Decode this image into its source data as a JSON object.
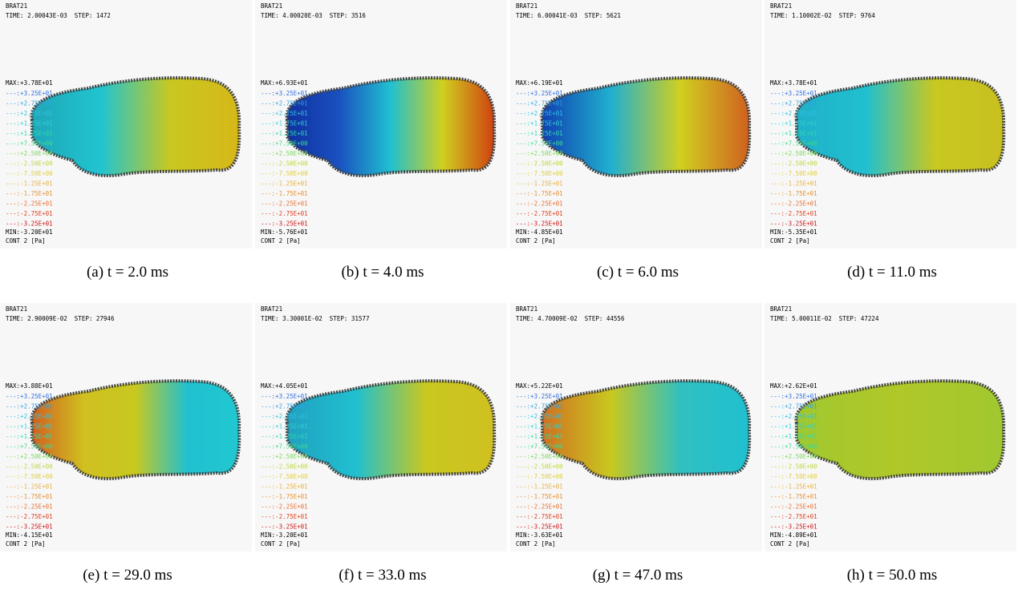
{
  "legend": {
    "levels": [
      "---:+3.25E+01",
      "---:+2.75E+01",
      "---:+2.25E+01",
      "---:+1.75E+01",
      "---:+1.25E+01",
      "---:+7.50E+00",
      "---:+2.50E+00",
      "---:-2.50E+00",
      "---:-7.50E+00",
      "---:-1.25E+01",
      "---:-1.75E+01",
      "---:-2.25E+01",
      "---:-2.75E+01",
      "---:-3.25E+01"
    ],
    "colors": [
      "#3070e0",
      "#30a0e0",
      "#30c0e0",
      "#30d0d0",
      "#30d8b0",
      "#40d890",
      "#80d860",
      "#c0d840",
      "#e0d040",
      "#e8b040",
      "#e89030",
      "#e87030",
      "#e04020",
      "#d01010"
    ]
  },
  "panels": [
    {
      "header": "BRAT21",
      "time": "TIME: 2.00043E-03  STEP: 1472",
      "max": "MAX:+3.78E+01",
      "min": "MIN:-3.20E+01",
      "unit": "CONT 2 [Pa]",
      "caption": "(a) t = 2.0 ms",
      "field_colors": [
        "#1fa7b8",
        "#20c4d0",
        "#c8c820",
        "#d6b818"
      ]
    },
    {
      "header": "BRAT21",
      "time": "TIME: 4.00020E-03  STEP: 3516",
      "max": "MAX:+6.93E+01",
      "min": "MIN:-5.76E+01",
      "unit": "CONT 2 [Pa]",
      "caption": "(b) t = 4.0 ms",
      "field_colors": [
        "#1030a0",
        "#1a50c0",
        "#20c0d0",
        "#d0d020",
        "#d04010"
      ]
    },
    {
      "header": "BRAT21",
      "time": "TIME: 6.00041E-03  STEP: 5621",
      "max": "MAX:+6.19E+01",
      "min": "MIN:-4.85E+01",
      "unit": "CONT 2 [Pa]",
      "caption": "(c) t = 6.0 ms",
      "field_colors": [
        "#1040b0",
        "#20b0d0",
        "#d0d020",
        "#d06020"
      ]
    },
    {
      "header": "BRAT21",
      "time": "TIME: 1.10002E-02  STEP: 9764",
      "max": "MAX:+3.78E+01",
      "min": "MIN:-5.35E+01",
      "unit": "CONT 2 [Pa]",
      "caption": "(d) t = 11.0 ms",
      "field_colors": [
        "#20b0c8",
        "#20c0d0",
        "#c8c820",
        "#c8c020"
      ]
    },
    {
      "header": "BRAT21",
      "time": "TIME: 2.90009E-02  STEP: 27946",
      "max": "MAX:+3.88E+01",
      "min": "MIN:-4.15E+01",
      "unit": "CONT 2 [Pa]",
      "caption": "(e) t = 29.0 ms",
      "field_colors": [
        "#d06020",
        "#d0c020",
        "#c8c820",
        "#20c0d0",
        "#20c8d0"
      ]
    },
    {
      "header": "BRAT21",
      "time": "TIME: 3.30001E-02  STEP: 31577",
      "max": "MAX:+4.05E+01",
      "min": "MIN:-3.20E+01",
      "unit": "CONT 2 [Pa]",
      "caption": "(f) t = 33.0 ms",
      "field_colors": [
        "#20a0c0",
        "#20c0d0",
        "#c8c820",
        "#d0c020"
      ]
    },
    {
      "header": "BRAT21",
      "time": "TIME: 4.70009E-02  STEP: 44556",
      "max": "MAX:+5.22E+01",
      "min": "MIN:-3.63E+01",
      "unit": "CONT 2 [Pa]",
      "caption": "(g) t = 47.0 ms",
      "field_colors": [
        "#d07020",
        "#c8c820",
        "#30c0c0",
        "#20c0d0"
      ]
    },
    {
      "header": "BRAT21",
      "time": "TIME: 5.00011E-02  STEP: 47224",
      "max": "MAX:+2.62E+01",
      "min": "MIN:-4.89E+01",
      "unit": "CONT 2 [Pa]",
      "caption": "(h) t = 50.0 ms",
      "field_colors": [
        "#a0c830",
        "#b0c828",
        "#a0c830"
      ]
    }
  ]
}
